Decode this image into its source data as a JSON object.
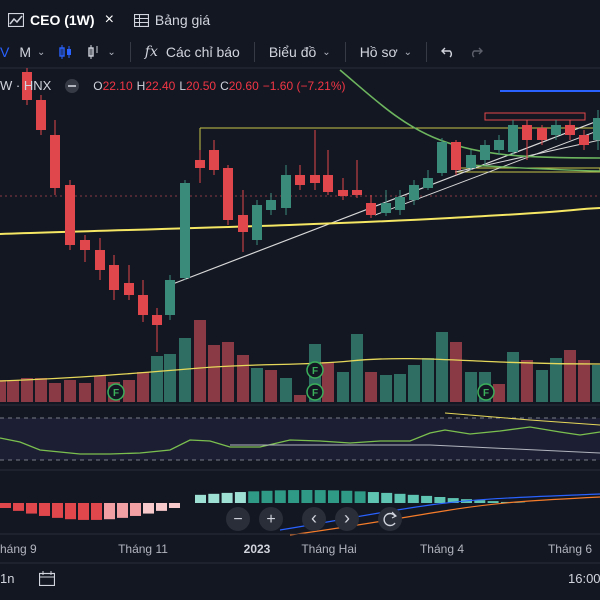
{
  "tabs": [
    {
      "label": "CEO (1W)",
      "close": "×",
      "icon": "chart-icon"
    },
    {
      "label": "Bảng giá",
      "icon": "table-icon"
    }
  ],
  "toolbar": {
    "interval": "M",
    "indicators_label": "Các chỉ báo",
    "chart_type_label": "Biểu đồ",
    "profile_label": "Hồ sơ"
  },
  "legend": {
    "symbol": "W · HNX",
    "open_label": "O",
    "open": "22.10",
    "high_label": "H",
    "high": "22.40",
    "low_label": "L",
    "low": "20.50",
    "close_label": "C",
    "close": "20.60",
    "change": "−1.60 (−7.21%)"
  },
  "chart_controls": {
    "zoom_out": "−",
    "zoom_in": "+",
    "back": "‹",
    "forward": "›"
  },
  "time_axis": [
    "háng 9",
    "Tháng 11",
    "2023",
    "Tháng Hai",
    "Tháng 4",
    "Tháng 6"
  ],
  "event_markers": [
    "F",
    "F",
    "F",
    "F"
  ],
  "bottom": {
    "left_text": "1n",
    "time": "16:00"
  },
  "colors": {
    "up": "#3b8b7a",
    "down": "#e0474c",
    "background": "#131722",
    "ma_yellow": "#f5e663",
    "ma_green": "#6db55e"
  }
}
